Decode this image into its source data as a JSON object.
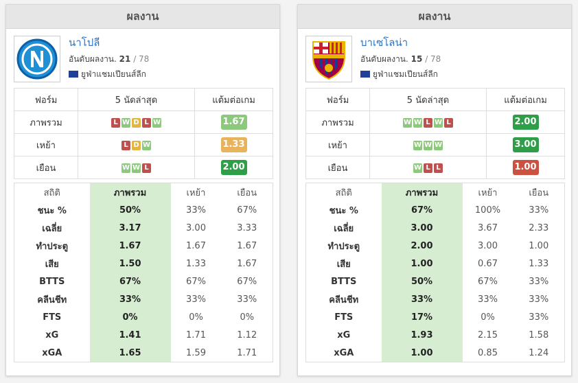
{
  "panels": [
    {
      "header": "ผลงาน",
      "team": {
        "name": "นาโปลี",
        "rank_label": "อันดับผลงาน.",
        "rank": "21",
        "rank_total": "/ 78",
        "league": "ยูฟ่าแชมเปียนส์ลีก"
      },
      "form": {
        "headers": [
          "ฟอร์ม",
          "5 นัดล่าสุด",
          "แต้มต่อเกม"
        ],
        "rows": [
          {
            "label": "ภาพรวม",
            "results": [
              "L",
              "W",
              "D",
              "L",
              "W"
            ],
            "ppg": "1.67",
            "color": "#8dc97c"
          },
          {
            "label": "เหย้า",
            "results": [
              "L",
              "D",
              "W"
            ],
            "ppg": "1.33",
            "color": "#e9b35b"
          },
          {
            "label": "เยือน",
            "results": [
              "W",
              "W",
              "L"
            ],
            "ppg": "2.00",
            "color": "#2f9e48"
          }
        ]
      },
      "stats": {
        "headers": [
          "สถิติ",
          "ภาพรวม",
          "เหย้า",
          "เยือน"
        ],
        "rows": [
          [
            "ชนะ %",
            "50%",
            "33%",
            "67%"
          ],
          [
            "เฉลี่ย",
            "3.17",
            "3.00",
            "3.33"
          ],
          [
            "ทำประตู",
            "1.67",
            "1.67",
            "1.67"
          ],
          [
            "เสีย",
            "1.50",
            "1.33",
            "1.67"
          ],
          [
            "BTTS",
            "67%",
            "67%",
            "67%"
          ],
          [
            "คลีนชีท",
            "33%",
            "33%",
            "33%"
          ],
          [
            "FTS",
            "0%",
            "0%",
            "0%"
          ],
          [
            "xG",
            "1.41",
            "1.71",
            "1.12"
          ],
          [
            "xGA",
            "1.65",
            "1.59",
            "1.71"
          ]
        ]
      }
    },
    {
      "header": "ผลงาน",
      "team": {
        "name": "บาเซโลน่า",
        "rank_label": "อันดับผลงาน.",
        "rank": "15",
        "rank_total": "/ 78",
        "league": "ยูฟ่าแชมเปียนส์ลีก"
      },
      "form": {
        "headers": [
          "ฟอร์ม",
          "5 นัดล่าสุด",
          "แต้มต่อเกม"
        ],
        "rows": [
          {
            "label": "ภาพรวม",
            "results": [
              "W",
              "W",
              "L",
              "W",
              "L"
            ],
            "ppg": "2.00",
            "color": "#2f9e48"
          },
          {
            "label": "เหย้า",
            "results": [
              "W",
              "W",
              "W"
            ],
            "ppg": "3.00",
            "color": "#2f9e48"
          },
          {
            "label": "เยือน",
            "results": [
              "W",
              "L",
              "L"
            ],
            "ppg": "1.00",
            "color": "#cb5240"
          }
        ]
      },
      "stats": {
        "headers": [
          "สถิติ",
          "ภาพรวม",
          "เหย้า",
          "เยือน"
        ],
        "rows": [
          [
            "ชนะ %",
            "67%",
            "100%",
            "33%"
          ],
          [
            "เฉลี่ย",
            "3.00",
            "3.67",
            "2.33"
          ],
          [
            "ทำประตู",
            "2.00",
            "3.00",
            "1.00"
          ],
          [
            "เสีย",
            "1.00",
            "0.67",
            "1.33"
          ],
          [
            "BTTS",
            "50%",
            "67%",
            "33%"
          ],
          [
            "คลีนชีท",
            "33%",
            "33%",
            "33%"
          ],
          [
            "FTS",
            "17%",
            "0%",
            "33%"
          ],
          [
            "xG",
            "1.93",
            "2.15",
            "1.58"
          ],
          [
            "xGA",
            "1.00",
            "0.85",
            "1.24"
          ]
        ]
      }
    }
  ]
}
